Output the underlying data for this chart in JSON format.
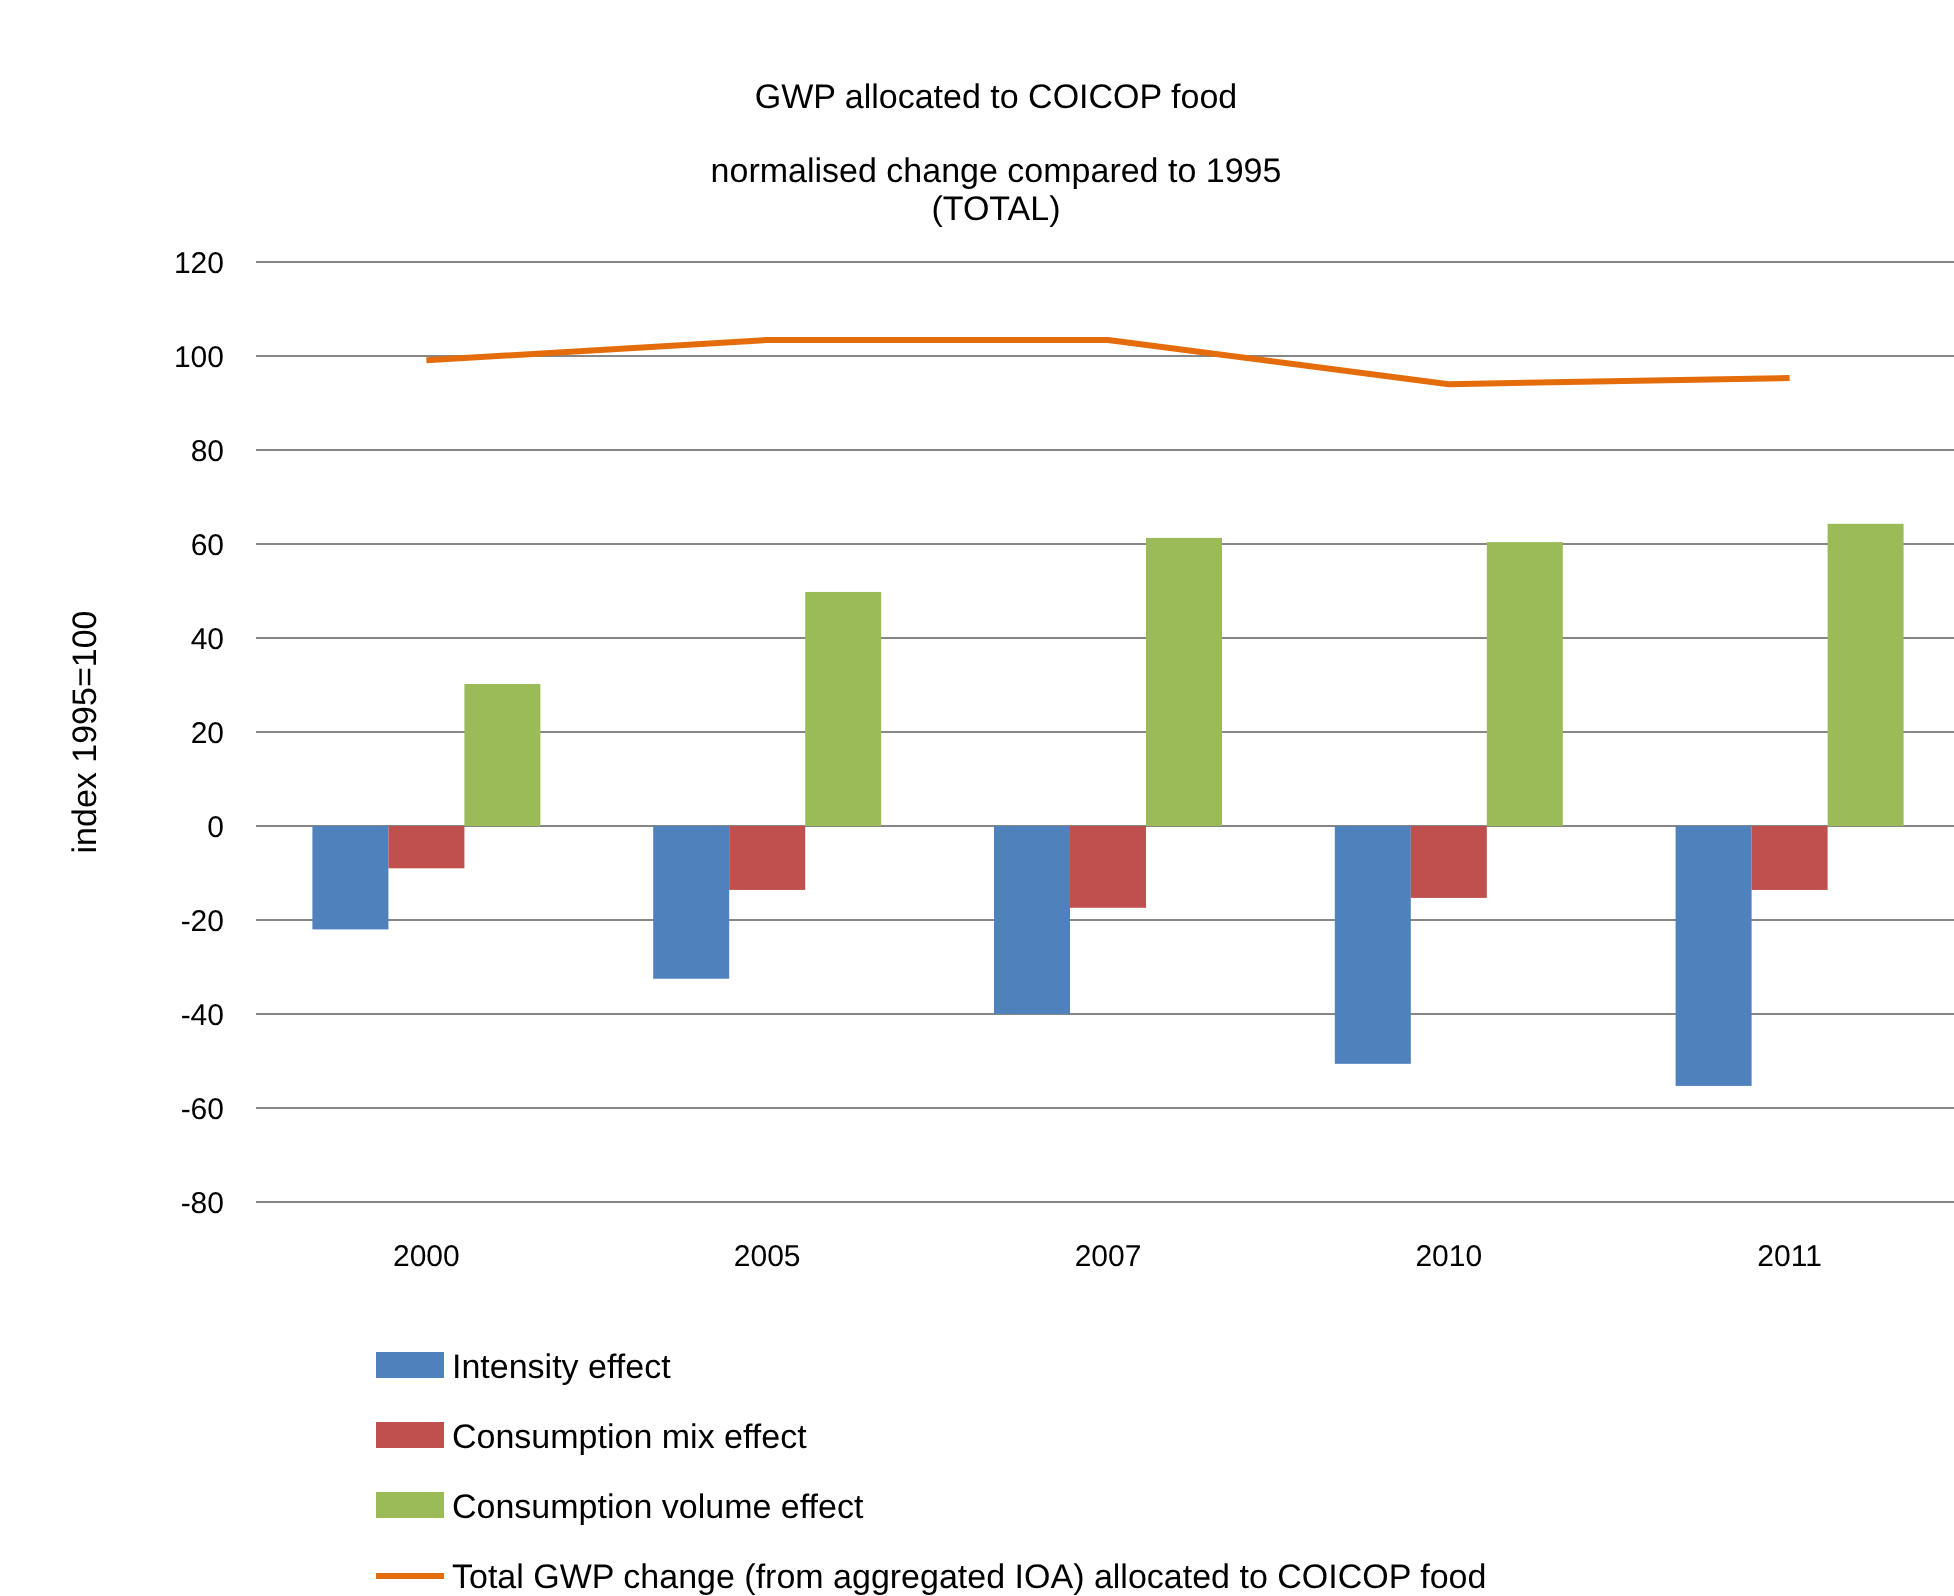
{
  "chart_data": {
    "type": "bar",
    "title": "GWP allocated to COICOP food",
    "subtitle": "normalised change compared to 1995\n(TOTAL)",
    "ylabel": "index 1995=100",
    "categories": [
      "2000",
      "2005",
      "2007",
      "2010",
      "2011"
    ],
    "series": [
      {
        "name": "Intensity effect",
        "color": "#4f81bd",
        "values": [
          -22,
          -32.5,
          -40,
          -50.6,
          -55.3
        ]
      },
      {
        "name": "Consumption mix effect",
        "color": "#c0504d",
        "values": [
          -9,
          -13.6,
          -17.4,
          -15.3,
          -13.6
        ]
      },
      {
        "name": "Consumption volume effect",
        "color": "#9bbb59",
        "values": [
          30.2,
          49.8,
          61.3,
          60.4,
          64.3
        ]
      },
      {
        "name": "Total GWP change (from aggregated IOA) allocated to COICOP food",
        "type": "line",
        "color": "#e46c0a",
        "values": [
          99.1,
          103.4,
          103.4,
          94,
          95.3
        ]
      }
    ],
    "ylim": [
      -80,
      120
    ],
    "yticks": [
      -80,
      -60,
      -40,
      -20,
      0,
      20,
      40,
      60,
      80,
      100,
      120
    ],
    "grid": "y",
    "legend": "bottom",
    "marker": "none"
  }
}
